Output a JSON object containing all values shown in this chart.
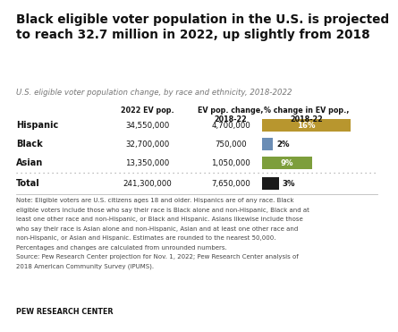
{
  "title": "Black eligible voter population in the U.S. is projected\nto reach 32.7 million in 2022, up slightly from 2018",
  "subtitle": "U.S. eligible voter population change, by race and ethnicity, 2018-2022",
  "rows": [
    {
      "label": "Hispanic",
      "pop": "34,550,000",
      "change": "4,700,000",
      "pct": 16,
      "bar_color": "#b8962e",
      "bar_text": "16%",
      "text_inside": true
    },
    {
      "label": "Black",
      "pop": "32,700,000",
      "change": "750,000",
      "pct": 2,
      "bar_color": "#6b8db5",
      "bar_text": "2%",
      "text_inside": false
    },
    {
      "label": "Asian",
      "pop": "13,350,000",
      "change": "1,050,000",
      "pct": 9,
      "bar_color": "#7d9e3c",
      "bar_text": "9%",
      "text_inside": true
    }
  ],
  "total_row": {
    "label": "Total",
    "pop": "241,300,000",
    "change": "7,650,000",
    "pct": 3,
    "bar_color": "#1a1a1a",
    "bar_text": "3%"
  },
  "col_headers": [
    "2022 EV pop.",
    "EV pop. change,\n2018-22",
    "% change in EV pop.,\n2018-22"
  ],
  "note_lines": [
    "Note: Eligible voters are U.S. citizens ages 18 and older. Hispanics are of any race. Black",
    "eligible voters include those who say their race is Black alone and non-Hispanic, Black and at",
    "least one other race and non-Hispanic, or Black and Hispanic. Asians likewise include those",
    "who say their race is Asian alone and non-Hispanic, Asian and at least one other race and",
    "non-Hispanic, or Asian and Hispanic. Estimates are rounded to the nearest 50,000.",
    "Percentages and changes are calculated from unrounded numbers.",
    "Source: Pew Research Center projection for Nov. 1, 2022; Pew Research Center analysis of",
    "2018 American Community Survey (IPUMS)."
  ],
  "footer": "PEW RESEARCH CENTER",
  "bg_color": "#ffffff",
  "max_pct": 16
}
